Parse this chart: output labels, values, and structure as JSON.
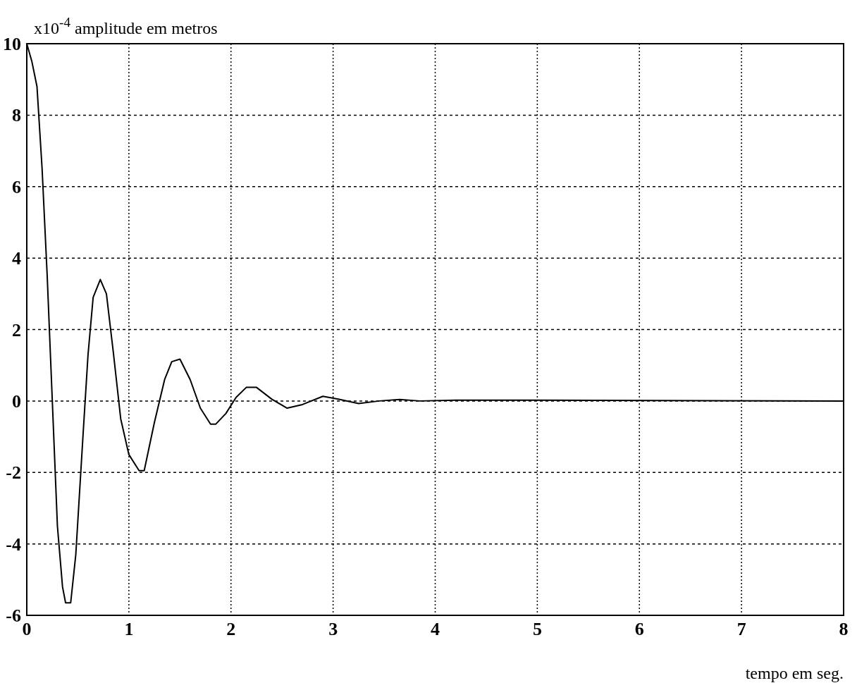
{
  "chart_data": {
    "type": "line",
    "ylabel": "x10$^{-4}$ amplitude em metros",
    "xlabel": "tempo em seg.",
    "xlim": [
      0,
      8
    ],
    "ylim": [
      -6,
      10
    ],
    "xticks": [
      0,
      1,
      2,
      3,
      4,
      5,
      6,
      7,
      8
    ],
    "yticks": [
      -6,
      -4,
      -2,
      0,
      2,
      4,
      6,
      8,
      10
    ],
    "grid": true,
    "marker": "none",
    "line_style": "solid",
    "series": [
      {
        "color": "#000000",
        "x": [
          0,
          0.05,
          0.1,
          0.15,
          0.2,
          0.25,
          0.3,
          0.35,
          0.38,
          0.43,
          0.48,
          0.55,
          0.6,
          0.65,
          0.72,
          0.78,
          0.85,
          0.92,
          1.0,
          1.1,
          1.15,
          1.25,
          1.35,
          1.42,
          1.5,
          1.6,
          1.7,
          1.8,
          1.85,
          1.95,
          2.05,
          2.15,
          2.25,
          2.4,
          2.55,
          2.7,
          2.9,
          3.05,
          3.25,
          3.45,
          3.65,
          3.85,
          4.2,
          5,
          8
        ],
        "values": [
          10,
          9.5,
          8.8,
          6.5,
          3.5,
          0,
          -3.5,
          -5.2,
          -5.65,
          -5.65,
          -4.3,
          -1,
          1.3,
          2.9,
          3.4,
          3,
          1.3,
          -0.5,
          -1.5,
          -1.95,
          -1.95,
          -0.6,
          0.6,
          1.1,
          1.17,
          0.6,
          -0.2,
          -0.65,
          -0.65,
          -0.35,
          0.1,
          0.38,
          0.38,
          0.05,
          -0.2,
          -0.1,
          0.13,
          0.05,
          -0.07,
          0,
          0.04,
          0,
          0.02,
          0.02,
          0
        ]
      }
    ]
  }
}
